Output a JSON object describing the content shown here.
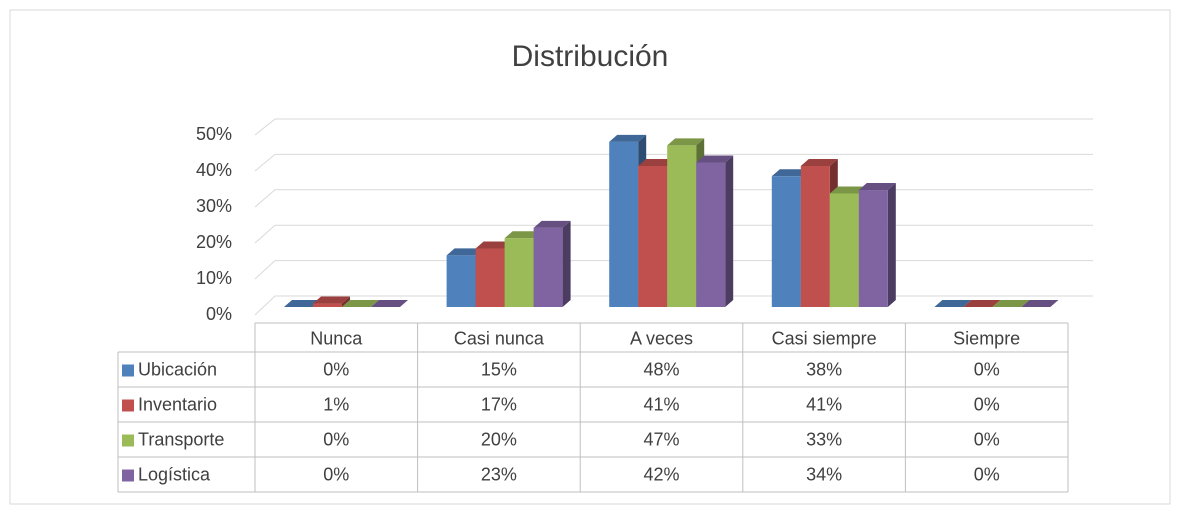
{
  "chart_data": {
    "type": "bar3d",
    "title": "Distribución",
    "categories": [
      "Nunca",
      "Casi nunca",
      "A veces",
      "Casi siempre",
      "Siempre"
    ],
    "series": [
      {
        "name": "Ubicación",
        "color": "#4f81bd",
        "values": [
          0,
          15,
          48,
          38,
          0
        ],
        "value_labels": [
          "0%",
          "15%",
          "48%",
          "38%",
          "0%"
        ]
      },
      {
        "name": "Inventario",
        "color": "#c0504d",
        "values": [
          1,
          17,
          41,
          41,
          0
        ],
        "value_labels": [
          "1%",
          "17%",
          "41%",
          "41%",
          "0%"
        ]
      },
      {
        "name": "Transporte",
        "color": "#9bbb59",
        "values": [
          0,
          20,
          47,
          33,
          0
        ],
        "value_labels": [
          "0%",
          "20%",
          "47%",
          "33%",
          "0%"
        ]
      },
      {
        "name": "Logística",
        "color": "#8064a2",
        "values": [
          0,
          23,
          42,
          34,
          0
        ],
        "value_labels": [
          "0%",
          "23%",
          "42%",
          "34%",
          "0%"
        ]
      }
    ],
    "ylim": [
      0,
      50
    ],
    "yticks": [
      {
        "value": 0,
        "label": "0%"
      },
      {
        "value": 10,
        "label": "10%"
      },
      {
        "value": 20,
        "label": "20%"
      },
      {
        "value": 30,
        "label": "30%"
      },
      {
        "value": 40,
        "label": "40%"
      },
      {
        "value": 50,
        "label": "50%"
      }
    ],
    "grid": true,
    "data_table": true
  }
}
